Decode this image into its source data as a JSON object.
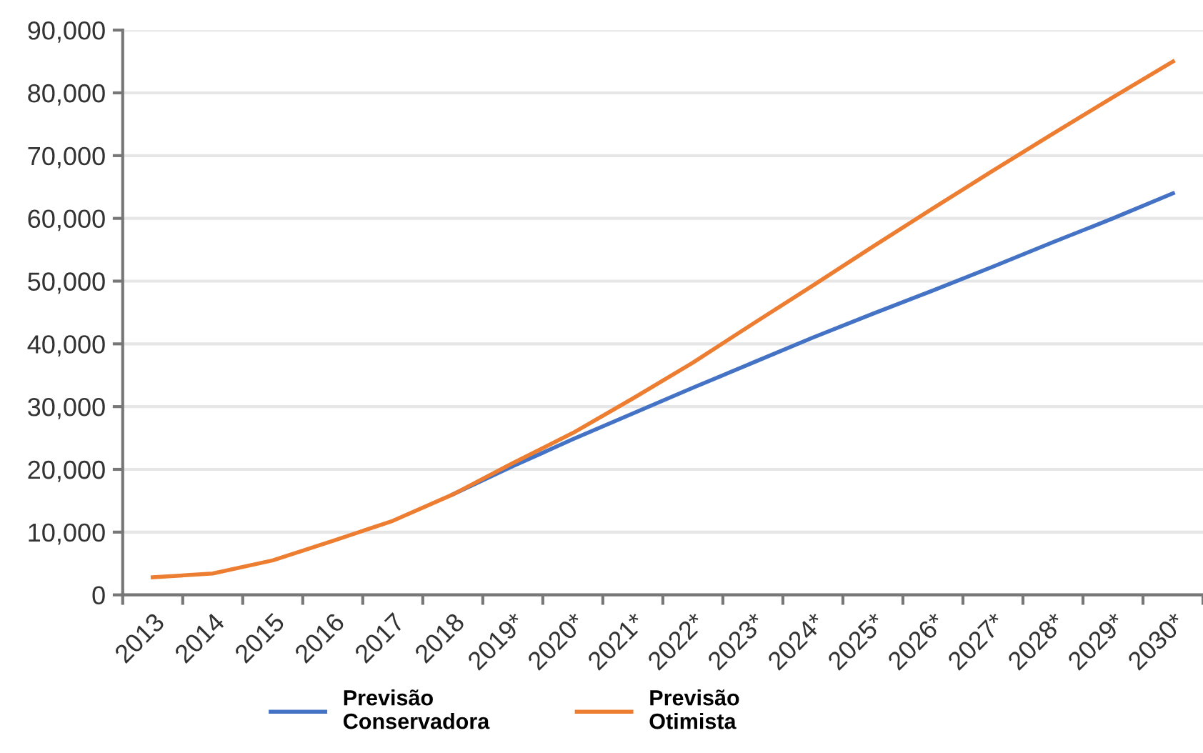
{
  "chart_data": {
    "type": "line",
    "categories": [
      "2013",
      "2014",
      "2015",
      "2016",
      "2017",
      "2018",
      "2019*",
      "2020*",
      "2021*",
      "2022*",
      "2023*",
      "2024*",
      "2025*",
      "2026*",
      "2027*",
      "2028*",
      "2029*",
      "2030*"
    ],
    "series": [
      {
        "name": "Previsão\nConservadora",
        "color": "#4472c4",
        "values": [
          null,
          null,
          null,
          null,
          null,
          16000,
          20500,
          24800,
          28900,
          33000,
          37000,
          41000,
          44800,
          48500,
          52300,
          56200,
          60000,
          64000
        ]
      },
      {
        "name": "Previsão\nOtimista",
        "color": "#ed7d31",
        "values": [
          2800,
          3400,
          5500,
          8600,
          11800,
          16000,
          21000,
          25800,
          31300,
          37000,
          43200,
          49300,
          55500,
          61600,
          67600,
          73500,
          79300,
          85000
        ]
      }
    ],
    "ylim": [
      0,
      90000
    ],
    "yticks": [
      {
        "value": 0,
        "label": "0"
      },
      {
        "value": 10000,
        "label": "10,000"
      },
      {
        "value": 20000,
        "label": "20,000"
      },
      {
        "value": 30000,
        "label": "30,000"
      },
      {
        "value": 40000,
        "label": "40,000"
      },
      {
        "value": 50000,
        "label": "50,000"
      },
      {
        "value": 60000,
        "label": "60,000"
      },
      {
        "value": 70000,
        "label": "70,000"
      },
      {
        "value": 80000,
        "label": "80,000"
      },
      {
        "value": 90000,
        "label": "90,000"
      }
    ],
    "grid": "y",
    "legend": "bottom",
    "marker": "none",
    "line_style": "solid"
  }
}
